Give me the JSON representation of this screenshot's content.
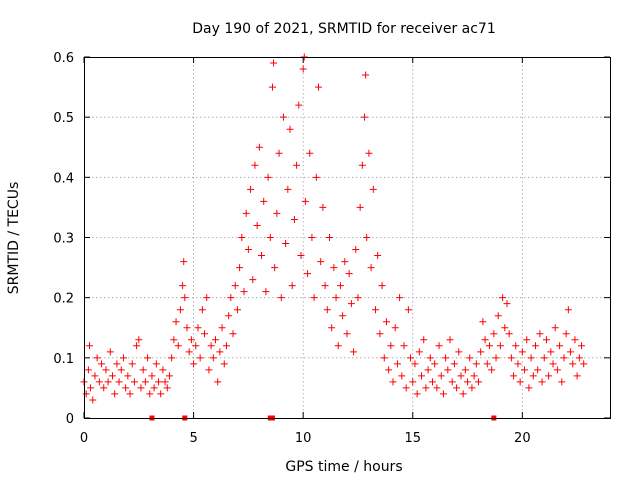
{
  "chart_data": {
    "type": "scatter",
    "title": "Day 190 of 2021, SRMTID for receiver ac71",
    "xlabel": "GPS time / hours",
    "ylabel": "SRMTID / TECUs",
    "xlim": [
      0,
      24
    ],
    "ylim": [
      0,
      0.6
    ],
    "xticks": [
      0,
      5,
      10,
      15,
      20
    ],
    "xtick_labels": [
      "0",
      "5",
      "10",
      "15",
      "20"
    ],
    "yticks": [
      0,
      0.1,
      0.2,
      0.3,
      0.4,
      0.5,
      0.6
    ],
    "ytick_labels": [
      "0",
      "0.1",
      "0.2",
      "0.3",
      "0.4",
      "0.5",
      "0.6"
    ],
    "grid": true,
    "legend": "none",
    "series_color": "#ff0000",
    "series": [
      {
        "name": "SRMTID",
        "marker": "plus",
        "points": [
          [
            0.0,
            0.06
          ],
          [
            0.1,
            0.04
          ],
          [
            0.2,
            0.08
          ],
          [
            0.25,
            0.12
          ],
          [
            0.3,
            0.05
          ],
          [
            0.4,
            0.03
          ],
          [
            0.5,
            0.07
          ],
          [
            0.6,
            0.1
          ],
          [
            0.7,
            0.06
          ],
          [
            0.8,
            0.09
          ],
          [
            0.9,
            0.05
          ],
          [
            1.0,
            0.08
          ],
          [
            1.1,
            0.06
          ],
          [
            1.2,
            0.11
          ],
          [
            1.3,
            0.07
          ],
          [
            1.4,
            0.04
          ],
          [
            1.5,
            0.09
          ],
          [
            1.6,
            0.06
          ],
          [
            1.7,
            0.08
          ],
          [
            1.8,
            0.1
          ],
          [
            1.9,
            0.05
          ],
          [
            2.0,
            0.07
          ],
          [
            2.1,
            0.04
          ],
          [
            2.2,
            0.09
          ],
          [
            2.3,
            0.06
          ],
          [
            2.4,
            0.12
          ],
          [
            2.5,
            0.13
          ],
          [
            2.6,
            0.05
          ],
          [
            2.7,
            0.08
          ],
          [
            2.8,
            0.06
          ],
          [
            2.9,
            0.1
          ],
          [
            3.0,
            0.04
          ],
          [
            3.1,
            0.07
          ],
          [
            3.2,
            0.05
          ],
          [
            3.3,
            0.09
          ],
          [
            3.4,
            0.06
          ],
          [
            3.5,
            0.04
          ],
          [
            3.6,
            0.08
          ],
          [
            3.7,
            0.06
          ],
          [
            3.8,
            0.05
          ],
          [
            3.9,
            0.07
          ],
          [
            4.0,
            0.1
          ],
          [
            4.1,
            0.13
          ],
          [
            4.2,
            0.16
          ],
          [
            4.3,
            0.12
          ],
          [
            4.4,
            0.18
          ],
          [
            4.5,
            0.22
          ],
          [
            4.55,
            0.26
          ],
          [
            4.6,
            0.2
          ],
          [
            4.7,
            0.15
          ],
          [
            4.8,
            0.11
          ],
          [
            4.9,
            0.13
          ],
          [
            5.0,
            0.09
          ],
          [
            5.1,
            0.12
          ],
          [
            5.2,
            0.15
          ],
          [
            5.3,
            0.1
          ],
          [
            5.4,
            0.18
          ],
          [
            5.5,
            0.14
          ],
          [
            5.6,
            0.2
          ],
          [
            5.7,
            0.08
          ],
          [
            5.8,
            0.12
          ],
          [
            5.9,
            0.1
          ],
          [
            6.0,
            0.13
          ],
          [
            6.1,
            0.06
          ],
          [
            6.2,
            0.11
          ],
          [
            6.3,
            0.15
          ],
          [
            6.4,
            0.09
          ],
          [
            6.5,
            0.12
          ],
          [
            6.6,
            0.17
          ],
          [
            6.7,
            0.2
          ],
          [
            6.8,
            0.14
          ],
          [
            6.9,
            0.22
          ],
          [
            7.0,
            0.18
          ],
          [
            7.1,
            0.25
          ],
          [
            7.2,
            0.3
          ],
          [
            7.3,
            0.21
          ],
          [
            7.4,
            0.34
          ],
          [
            7.5,
            0.28
          ],
          [
            7.6,
            0.38
          ],
          [
            7.7,
            0.23
          ],
          [
            7.8,
            0.42
          ],
          [
            7.9,
            0.32
          ],
          [
            8.0,
            0.45
          ],
          [
            8.1,
            0.27
          ],
          [
            8.2,
            0.36
          ],
          [
            8.3,
            0.21
          ],
          [
            8.4,
            0.4
          ],
          [
            8.5,
            0.3
          ],
          [
            8.6,
            0.55
          ],
          [
            8.65,
            0.59
          ],
          [
            8.7,
            0.25
          ],
          [
            8.8,
            0.34
          ],
          [
            8.9,
            0.44
          ],
          [
            9.0,
            0.2
          ],
          [
            9.1,
            0.5
          ],
          [
            9.2,
            0.29
          ],
          [
            9.3,
            0.38
          ],
          [
            9.4,
            0.48
          ],
          [
            9.5,
            0.22
          ],
          [
            9.6,
            0.33
          ],
          [
            9.7,
            0.42
          ],
          [
            9.8,
            0.52
          ],
          [
            9.9,
            0.27
          ],
          [
            10.0,
            0.58
          ],
          [
            10.05,
            0.6
          ],
          [
            10.1,
            0.36
          ],
          [
            10.2,
            0.24
          ],
          [
            10.3,
            0.44
          ],
          [
            10.4,
            0.3
          ],
          [
            10.5,
            0.2
          ],
          [
            10.6,
            0.4
          ],
          [
            10.7,
            0.55
          ],
          [
            10.8,
            0.26
          ],
          [
            10.9,
            0.35
          ],
          [
            11.0,
            0.22
          ],
          [
            11.1,
            0.18
          ],
          [
            11.2,
            0.3
          ],
          [
            11.3,
            0.15
          ],
          [
            11.4,
            0.25
          ],
          [
            11.5,
            0.2
          ],
          [
            11.6,
            0.12
          ],
          [
            11.7,
            0.22
          ],
          [
            11.8,
            0.17
          ],
          [
            11.9,
            0.26
          ],
          [
            12.0,
            0.14
          ],
          [
            12.1,
            0.24
          ],
          [
            12.2,
            0.19
          ],
          [
            12.3,
            0.11
          ],
          [
            12.4,
            0.28
          ],
          [
            12.5,
            0.2
          ],
          [
            12.6,
            0.35
          ],
          [
            12.7,
            0.42
          ],
          [
            12.8,
            0.5
          ],
          [
            12.85,
            0.57
          ],
          [
            12.9,
            0.3
          ],
          [
            13.0,
            0.44
          ],
          [
            13.1,
            0.25
          ],
          [
            13.2,
            0.38
          ],
          [
            13.3,
            0.18
          ],
          [
            13.4,
            0.27
          ],
          [
            13.5,
            0.14
          ],
          [
            13.6,
            0.22
          ],
          [
            13.7,
            0.1
          ],
          [
            13.8,
            0.16
          ],
          [
            13.9,
            0.08
          ],
          [
            14.0,
            0.12
          ],
          [
            14.1,
            0.06
          ],
          [
            14.2,
            0.15
          ],
          [
            14.3,
            0.09
          ],
          [
            14.4,
            0.2
          ],
          [
            14.5,
            0.07
          ],
          [
            14.6,
            0.12
          ],
          [
            14.7,
            0.05
          ],
          [
            14.8,
            0.18
          ],
          [
            14.9,
            0.1
          ],
          [
            15.0,
            0.06
          ],
          [
            15.1,
            0.09
          ],
          [
            15.2,
            0.04
          ],
          [
            15.3,
            0.11
          ],
          [
            15.4,
            0.07
          ],
          [
            15.5,
            0.13
          ],
          [
            15.6,
            0.05
          ],
          [
            15.7,
            0.08
          ],
          [
            15.8,
            0.1
          ],
          [
            15.9,
            0.06
          ],
          [
            16.0,
            0.09
          ],
          [
            16.1,
            0.05
          ],
          [
            16.2,
            0.12
          ],
          [
            16.3,
            0.07
          ],
          [
            16.4,
            0.04
          ],
          [
            16.5,
            0.1
          ],
          [
            16.6,
            0.08
          ],
          [
            16.7,
            0.13
          ],
          [
            16.8,
            0.06
          ],
          [
            16.9,
            0.09
          ],
          [
            17.0,
            0.05
          ],
          [
            17.1,
            0.11
          ],
          [
            17.2,
            0.07
          ],
          [
            17.3,
            0.04
          ],
          [
            17.4,
            0.08
          ],
          [
            17.5,
            0.06
          ],
          [
            17.6,
            0.1
          ],
          [
            17.7,
            0.05
          ],
          [
            17.8,
            0.07
          ],
          [
            17.9,
            0.09
          ],
          [
            18.0,
            0.06
          ],
          [
            18.1,
            0.11
          ],
          [
            18.2,
            0.16
          ],
          [
            18.3,
            0.13
          ],
          [
            18.4,
            0.09
          ],
          [
            18.5,
            0.12
          ],
          [
            18.6,
            0.08
          ],
          [
            18.7,
            0.14
          ],
          [
            18.8,
            0.1
          ],
          [
            18.9,
            0.17
          ],
          [
            19.0,
            0.12
          ],
          [
            19.1,
            0.2
          ],
          [
            19.2,
            0.15
          ],
          [
            19.3,
            0.19
          ],
          [
            19.4,
            0.14
          ],
          [
            19.5,
            0.1
          ],
          [
            19.6,
            0.07
          ],
          [
            19.7,
            0.12
          ],
          [
            19.8,
            0.09
          ],
          [
            19.9,
            0.06
          ],
          [
            20.0,
            0.11
          ],
          [
            20.1,
            0.08
          ],
          [
            20.2,
            0.13
          ],
          [
            20.3,
            0.05
          ],
          [
            20.4,
            0.1
          ],
          [
            20.5,
            0.07
          ],
          [
            20.6,
            0.12
          ],
          [
            20.7,
            0.08
          ],
          [
            20.8,
            0.14
          ],
          [
            20.9,
            0.06
          ],
          [
            21.0,
            0.1
          ],
          [
            21.1,
            0.13
          ],
          [
            21.2,
            0.07
          ],
          [
            21.3,
            0.11
          ],
          [
            21.4,
            0.09
          ],
          [
            21.5,
            0.15
          ],
          [
            21.6,
            0.08
          ],
          [
            21.7,
            0.12
          ],
          [
            21.8,
            0.06
          ],
          [
            21.9,
            0.1
          ],
          [
            22.0,
            0.14
          ],
          [
            22.1,
            0.18
          ],
          [
            22.2,
            0.11
          ],
          [
            22.3,
            0.09
          ],
          [
            22.4,
            0.13
          ],
          [
            22.5,
            0.07
          ],
          [
            22.6,
            0.1
          ],
          [
            22.7,
            0.12
          ],
          [
            22.8,
            0.09
          ]
        ]
      }
    ],
    "baseline_markers": [
      3.1,
      4.6,
      8.5,
      8.6,
      18.7
    ]
  }
}
